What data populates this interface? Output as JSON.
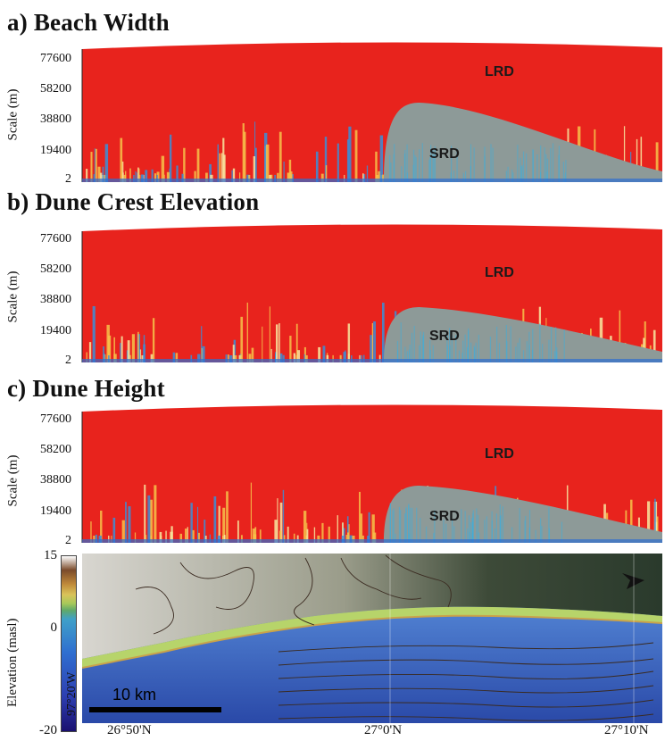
{
  "panels": [
    {
      "title": "a) Beach Width",
      "lrd": "LRD",
      "srd": "SRD"
    },
    {
      "title": "b) Dune Crest Elevation",
      "lrd": "LRD",
      "srd": "SRD"
    },
    {
      "title": "c) Dune Height",
      "lrd": "LRD",
      "srd": "SRD"
    }
  ],
  "ylabel": "Scale (m)",
  "yticks": [
    "77600",
    "58200",
    "38800",
    "19400",
    "2"
  ],
  "map": {
    "colorbar_label": "Elevation (masl)",
    "colorbar_ticks": [
      "15",
      "0",
      "-20"
    ],
    "lon_label": "97°20'W",
    "lat_ticks": [
      "26°50'N",
      "27°0'N",
      "27°10'N"
    ],
    "scale_label": "10 km"
  },
  "colors": {
    "lrd": "#e8231d",
    "srd": "#8d9a98",
    "water": "#2c55b8",
    "land": "#b7d46a"
  }
}
